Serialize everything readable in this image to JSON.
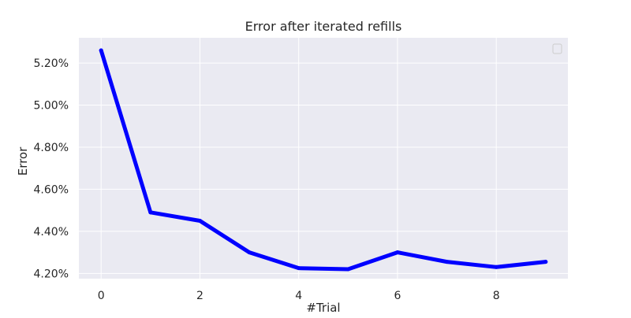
{
  "chart_data": {
    "type": "line",
    "title": "Error after iterated refills",
    "xlabel": "#Trial",
    "ylabel": "Error",
    "x": [
      0,
      1,
      2,
      3,
      4,
      5,
      6,
      7,
      8,
      9
    ],
    "series": [
      {
        "values": [
          5.26,
          4.49,
          4.45,
          4.3,
          4.225,
          4.22,
          4.3,
          4.255,
          4.23,
          4.255
        ]
      }
    ],
    "xlim": [
      -0.45,
      9.45
    ],
    "ylim": [
      4.175,
      5.32
    ],
    "xticks": [
      0,
      2,
      4,
      6,
      8
    ],
    "xtick_labels": [
      "0",
      "2",
      "4",
      "6",
      "8"
    ],
    "yticks": [
      4.2,
      4.4,
      4.6,
      4.8,
      5.0,
      5.2
    ],
    "ytick_labels": [
      "4.20%",
      "4.40%",
      "4.60%",
      "4.80%",
      "5.00%",
      "5.20%"
    ],
    "grid": true,
    "legend": "top-right, empty",
    "colors": {
      "plot_background": "#eaeaf2",
      "grid": "#ffffff",
      "line": "#0000ff",
      "text": "#262626"
    }
  }
}
